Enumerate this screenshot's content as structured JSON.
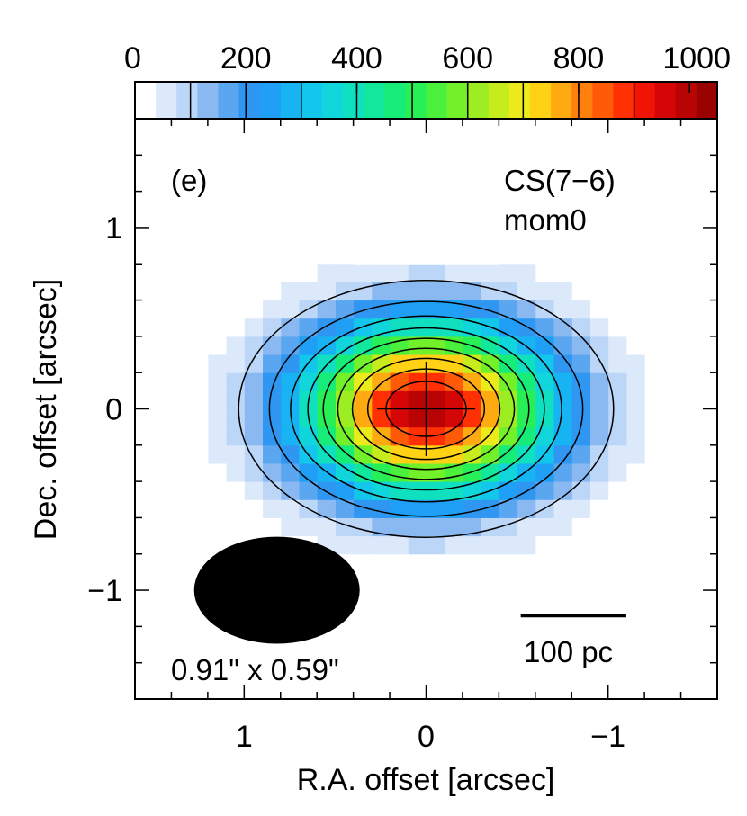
{
  "chart_data": {
    "type": "heatmap",
    "panel_label": "(e)",
    "line_label": "CS(7−6)",
    "map_label": "mom0",
    "xlabel": "R.A. offset [arcsec]",
    "ylabel": "Dec. offset [arcsec]",
    "xlim": [
      1.6,
      -1.6
    ],
    "ylim": [
      -1.6,
      1.6
    ],
    "x_ticks": [
      1,
      0,
      -1
    ],
    "x_tick_labels": [
      "1",
      "0",
      "−1"
    ],
    "y_ticks": [
      1,
      0,
      -1
    ],
    "y_tick_labels": [
      "1",
      "0",
      "−1"
    ],
    "colorbar": {
      "range": [
        0,
        1050
      ],
      "ticks": [
        0,
        200,
        400,
        600,
        800,
        1000
      ],
      "tick_labels": [
        "0",
        "200",
        "400",
        "600",
        "800",
        "1000"
      ],
      "colors": [
        "#ffffff",
        "#dce9fb",
        "#bcd6f7",
        "#8ab9f2",
        "#5aa6f0",
        "#2f96f2",
        "#1f9ff5",
        "#17b3f2",
        "#12c6ec",
        "#10d6dc",
        "#10e0c0",
        "#12e89c",
        "#18ec78",
        "#28ef55",
        "#4af03b",
        "#72f02a",
        "#9cee22",
        "#c7ec1e",
        "#ecea1a",
        "#ffd215",
        "#ffaa10",
        "#ff800c",
        "#ff5a08",
        "#ff3004",
        "#f01404",
        "#d40606",
        "#b80404",
        "#9a0202"
      ]
    },
    "source": {
      "peak_value": 1000,
      "center": [
        0,
        0
      ],
      "sigma_ra_arcsec": 0.48,
      "sigma_dec_arcsec": 0.33,
      "contour_levels": [
        100,
        200,
        300,
        400,
        500,
        600,
        700,
        800,
        900
      ]
    },
    "beam": {
      "center": [
        0.82,
        -1.0
      ],
      "major_arcsec": 0.91,
      "minor_arcsec": 0.59,
      "label": "0.91\" x 0.59\""
    },
    "scale_bar": {
      "label": "100 pc",
      "x_from": -0.52,
      "x_to": -1.1,
      "y": -1.14
    },
    "center_cross": {
      "ra_half_arcsec": 0.27,
      "dec_half_arcsec": 0.26
    }
  }
}
